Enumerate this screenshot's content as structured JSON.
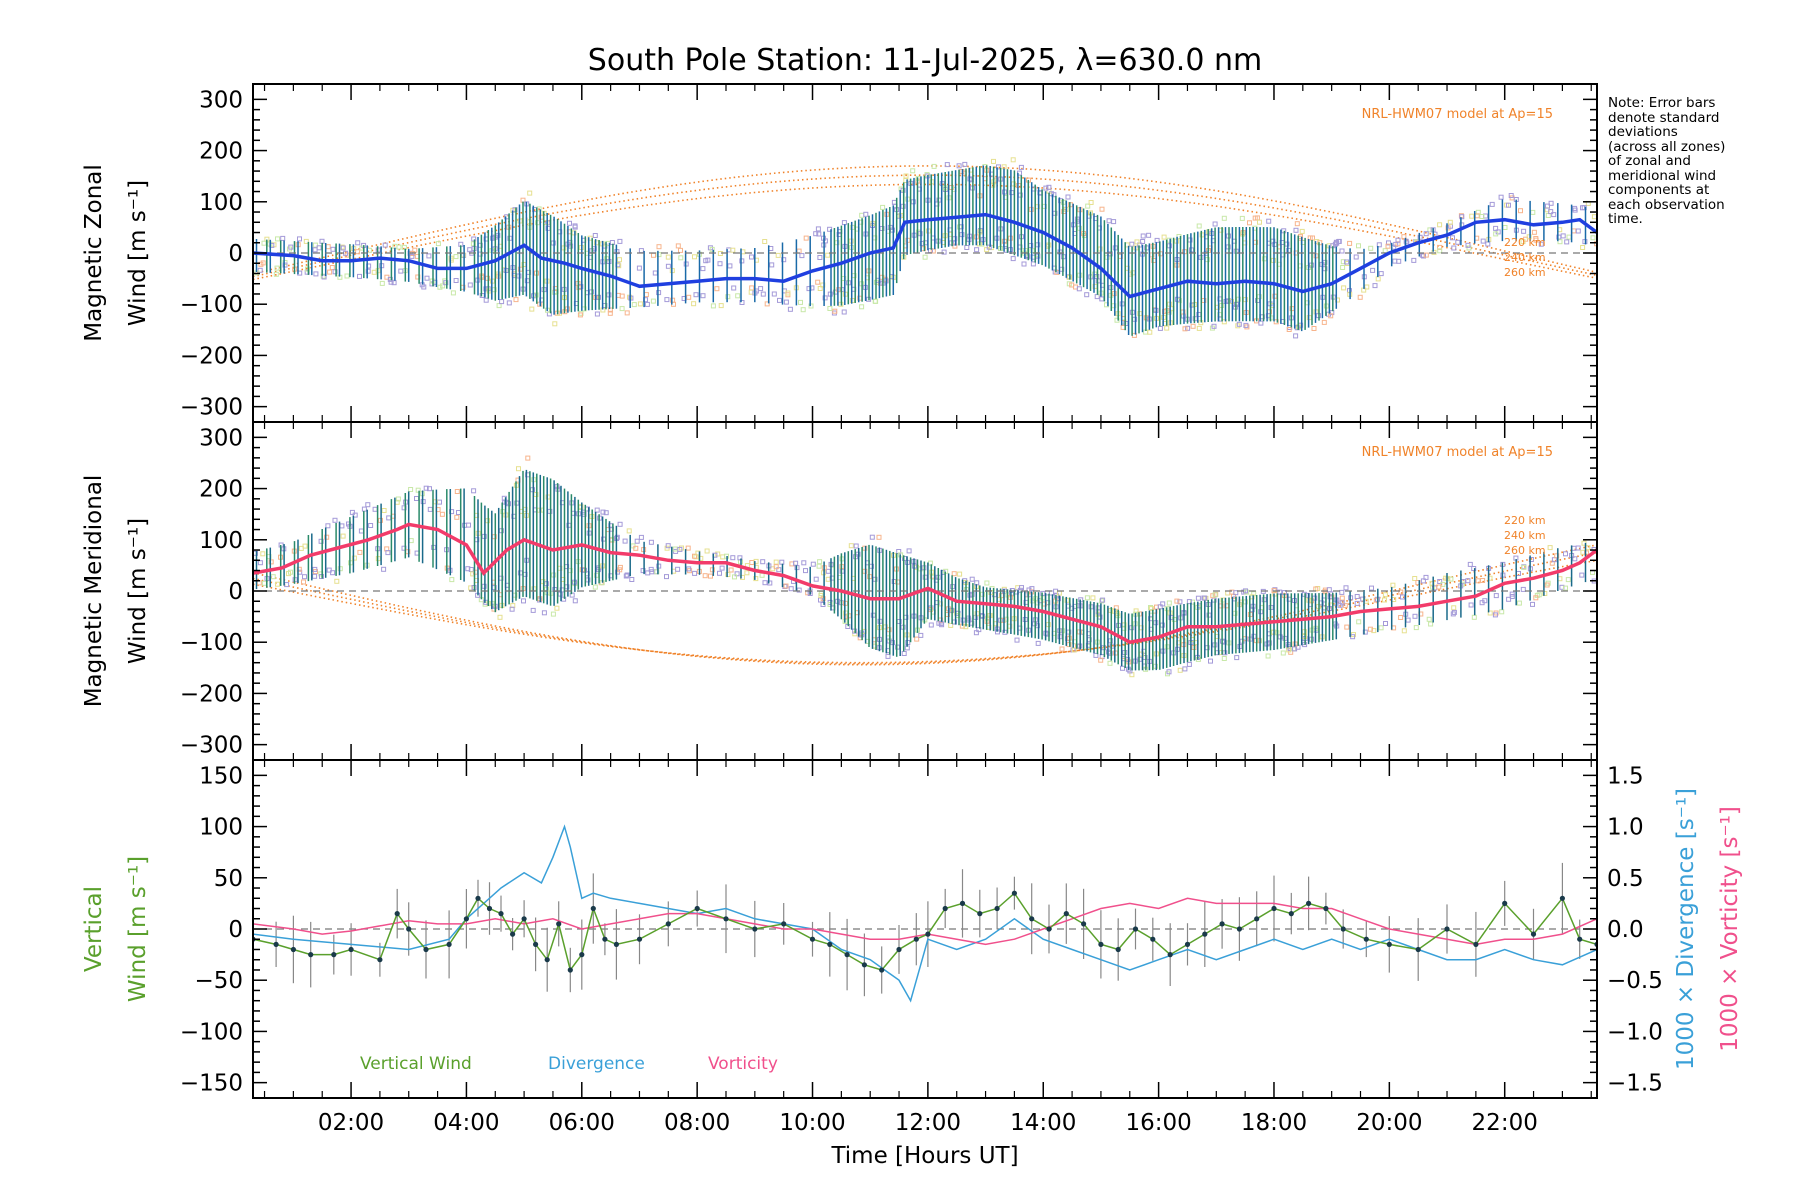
{
  "colors": {
    "zonal_mean": "#1f3fe0",
    "meridional_mean": "#f23b6a",
    "model": "#f0832a",
    "vertical": "#5aa02c",
    "divergence": "#3aa0d8",
    "vorticity": "#f0508c",
    "scatter": "#a49ad8",
    "errbar_zonal": "#1a6aa8",
    "errbar_merid": "#1a6a8a"
  },
  "note": {
    "lines": [
      "Note: Error bars",
      "denote standard",
      "deviations",
      "(across all zones)",
      "of zonal and",
      "meridional wind",
      "components at",
      "each observation",
      "time."
    ]
  },
  "chart_data": {
    "title": "South Pole Station: 11-Jul-2025, λ=630.0 nm",
    "xlabel": "Time [Hours UT]",
    "xlim": [
      0.3,
      23.6
    ],
    "xticks": [
      2,
      4,
      6,
      8,
      10,
      12,
      14,
      16,
      18,
      20,
      22
    ],
    "xtick_labels": [
      "02:00",
      "04:00",
      "06:00",
      "08:00",
      "10:00",
      "12:00",
      "14:00",
      "16:00",
      "18:00",
      "20:00",
      "22:00"
    ],
    "panels": [
      {
        "name": "zonal",
        "type": "line",
        "ylabel_line1": "Magnetic Zonal",
        "ylabel_line2": "Wind [m s⁻¹]",
        "ylim": [
          -330,
          330
        ],
        "yticks": [
          -300,
          -200,
          -100,
          0,
          100,
          200,
          300
        ],
        "model_label": "NRL-HWM07 model at Ap=15",
        "model_altitudes": [
          "220 km",
          "240 km",
          "260 km"
        ],
        "series_mean": {
          "name": "Magnetic Zonal Wind",
          "x": [
            0.3,
            1.0,
            1.5,
            2.0,
            2.5,
            3.0,
            3.5,
            4.0,
            4.5,
            5.0,
            5.3,
            5.7,
            6.0,
            6.5,
            7.0,
            7.5,
            8.0,
            8.5,
            9.0,
            9.5,
            10.0,
            10.5,
            11.0,
            11.4,
            11.6,
            12.0,
            12.5,
            13.0,
            13.5,
            14.0,
            14.5,
            15.0,
            15.5,
            16.0,
            16.5,
            17.0,
            17.5,
            18.0,
            18.5,
            19.0,
            19.5,
            20.0,
            20.5,
            21.0,
            21.5,
            22.0,
            22.5,
            23.0,
            23.3,
            23.6
          ],
          "y": [
            0,
            -5,
            -15,
            -15,
            -10,
            -15,
            -30,
            -30,
            -15,
            15,
            -10,
            -20,
            -30,
            -45,
            -65,
            -60,
            -55,
            -50,
            -50,
            -55,
            -35,
            -20,
            0,
            10,
            60,
            65,
            70,
            75,
            60,
            40,
            10,
            -30,
            -85,
            -70,
            -55,
            -60,
            -55,
            -60,
            -75,
            -60,
            -30,
            0,
            20,
            35,
            60,
            65,
            55,
            60,
            65,
            40
          ]
        },
        "envelope_upper": {
          "x": [
            0.3,
            2,
            3,
            4,
            4.5,
            5,
            5.5,
            6,
            7,
            8,
            9,
            10,
            10.5,
            11,
            11.4,
            11.6,
            12,
            12.5,
            13,
            13.5,
            14,
            15,
            15.5,
            16,
            17,
            18,
            18.5,
            19,
            19.5,
            20,
            21,
            22,
            23,
            23.6
          ],
          "y": [
            30,
            20,
            10,
            20,
            60,
            110,
            80,
            40,
            10,
            10,
            15,
            40,
            60,
            80,
            100,
            150,
            160,
            170,
            180,
            170,
            130,
            80,
            20,
            30,
            60,
            60,
            40,
            20,
            10,
            20,
            60,
            110,
            100,
            90
          ]
        },
        "envelope_lower": {
          "x": [
            0.3,
            2,
            3,
            4,
            4.5,
            5,
            5.5,
            6,
            7,
            8,
            9,
            10,
            10.5,
            11,
            11.4,
            11.6,
            12,
            12.5,
            13,
            13.5,
            14,
            15,
            15.5,
            16,
            17,
            18,
            18.5,
            19,
            19.5,
            20,
            21,
            22,
            23,
            23.6
          ],
          "y": [
            -40,
            -50,
            -60,
            -80,
            -100,
            -90,
            -130,
            -120,
            -110,
            -100,
            -100,
            -110,
            -110,
            -100,
            -90,
            -10,
            0,
            10,
            10,
            -10,
            -30,
            -90,
            -170,
            -150,
            -140,
            -140,
            -160,
            -120,
            -80,
            -30,
            10,
            20,
            20,
            10
          ]
        }
      },
      {
        "name": "meridional",
        "type": "line",
        "ylabel_line1": "Magnetic Meridional",
        "ylabel_line2": "Wind [m s⁻¹]",
        "ylim": [
          -330,
          330
        ],
        "yticks": [
          -300,
          -200,
          -100,
          0,
          100,
          200,
          300
        ],
        "model_label": "NRL-HWM07 model at Ap=15",
        "model_altitudes": [
          "220 km",
          "240 km",
          "260 km"
        ],
        "series_mean": {
          "name": "Magnetic Meridional Wind",
          "x": [
            0.3,
            0.8,
            1.3,
            1.8,
            2.3,
            2.8,
            3.0,
            3.5,
            4.0,
            4.3,
            4.7,
            5.0,
            5.5,
            6.0,
            6.5,
            7.0,
            7.5,
            8.0,
            8.5,
            9.0,
            9.5,
            10.0,
            10.5,
            11.0,
            11.5,
            12.0,
            12.5,
            13.0,
            13.5,
            14.0,
            14.5,
            15.0,
            15.5,
            16.0,
            16.5,
            17.0,
            17.5,
            18.0,
            18.5,
            19.0,
            19.5,
            20.0,
            20.5,
            21.0,
            21.5,
            22.0,
            22.5,
            23.0,
            23.3,
            23.6
          ],
          "y": [
            35,
            45,
            70,
            85,
            100,
            120,
            130,
            120,
            90,
            35,
            80,
            100,
            80,
            90,
            75,
            70,
            60,
            55,
            55,
            40,
            30,
            10,
            0,
            -15,
            -15,
            5,
            -20,
            -25,
            -30,
            -40,
            -55,
            -70,
            -100,
            -90,
            -70,
            -70,
            -65,
            -60,
            -55,
            -50,
            -40,
            -35,
            -30,
            -20,
            -10,
            15,
            25,
            40,
            55,
            80
          ]
        },
        "envelope_upper": {
          "x": [
            0.3,
            1,
            2,
            3,
            4,
            4.5,
            5,
            5.5,
            6,
            7,
            8,
            9,
            10,
            10.5,
            11,
            11.5,
            12,
            12.5,
            13,
            14,
            15,
            15.5,
            16,
            17,
            18,
            19,
            20,
            21,
            22,
            23,
            23.6
          ],
          "y": [
            80,
            100,
            150,
            200,
            210,
            160,
            250,
            230,
            180,
            100,
            80,
            60,
            50,
            80,
            100,
            80,
            60,
            30,
            10,
            0,
            -20,
            -40,
            -30,
            -10,
            0,
            0,
            10,
            40,
            60,
            90,
            100
          ]
        },
        "envelope_lower": {
          "x": [
            0.3,
            1,
            2,
            3,
            4,
            4.5,
            5,
            5.5,
            6,
            7,
            8,
            9,
            10,
            10.5,
            11,
            11.5,
            12,
            12.5,
            13,
            14,
            15,
            15.5,
            16,
            17,
            18,
            19,
            20,
            21,
            22,
            23,
            23.6
          ],
          "y": [
            0,
            10,
            30,
            60,
            10,
            -50,
            -20,
            -40,
            0,
            30,
            30,
            20,
            -10,
            -60,
            -120,
            -140,
            -60,
            -70,
            -80,
            -100,
            -130,
            -160,
            -160,
            -130,
            -120,
            -100,
            -80,
            -60,
            -40,
            0,
            20
          ]
        }
      },
      {
        "name": "vertical",
        "type": "line",
        "ylabel_line1": "Vertical",
        "ylabel_line2": "Wind [m s⁻¹]",
        "ylabel_right_div": "1000 × Divergence [s⁻¹]",
        "ylabel_right_vort": "1000 × Vorticity [s⁻¹]",
        "ylim": [
          -165,
          165
        ],
        "yticks": [
          -150,
          -100,
          -50,
          0,
          50,
          100,
          150
        ],
        "y2lim": [
          -1.65,
          1.65
        ],
        "y2ticks": [
          -1.5,
          -1.0,
          -0.5,
          0.0,
          0.5,
          1.0,
          1.5
        ],
        "y2tick_labels": [
          "−1.5",
          "−1.0",
          "−0.5",
          "0.0",
          "0.5",
          "1.0",
          "1.5"
        ],
        "legend": [
          "Vertical Wind",
          "Divergence",
          "Vorticity"
        ],
        "series": [
          {
            "name": "Vertical Wind",
            "x": [
              0.3,
              0.7,
              1.0,
              1.3,
              1.7,
              2.0,
              2.5,
              2.8,
              3.0,
              3.3,
              3.7,
              4.0,
              4.2,
              4.4,
              4.6,
              4.8,
              5.0,
              5.2,
              5.4,
              5.6,
              5.8,
              6.0,
              6.2,
              6.4,
              6.6,
              7.0,
              7.5,
              8.0,
              8.5,
              9.0,
              9.5,
              10.0,
              10.3,
              10.6,
              10.9,
              11.2,
              11.5,
              11.8,
              12.0,
              12.3,
              12.6,
              12.9,
              13.2,
              13.5,
              13.8,
              14.1,
              14.4,
              14.7,
              15.0,
              15.3,
              15.6,
              15.9,
              16.2,
              16.5,
              16.8,
              17.1,
              17.4,
              17.7,
              18.0,
              18.3,
              18.6,
              18.9,
              19.2,
              19.6,
              20.0,
              20.5,
              21.0,
              21.5,
              22.0,
              22.5,
              23.0,
              23.3,
              23.6
            ],
            "y": [
              -10,
              -15,
              -20,
              -25,
              -25,
              -20,
              -30,
              15,
              0,
              -20,
              -15,
              10,
              30,
              20,
              15,
              -5,
              10,
              -15,
              -30,
              5,
              -40,
              -25,
              20,
              -10,
              -15,
              -10,
              5,
              20,
              10,
              0,
              5,
              -10,
              -15,
              -25,
              -35,
              -40,
              -20,
              -10,
              -5,
              20,
              25,
              15,
              20,
              35,
              10,
              0,
              15,
              5,
              -15,
              -20,
              0,
              -10,
              -25,
              -15,
              -5,
              5,
              0,
              10,
              20,
              15,
              25,
              20,
              0,
              -10,
              -15,
              -20,
              0,
              -15,
              25,
              -5,
              30,
              -10,
              -15
            ]
          },
          {
            "name": "Divergence",
            "x": [
              0.3,
              1,
              2,
              3,
              3.7,
              4.0,
              4.3,
              4.6,
              5.0,
              5.3,
              5.5,
              5.7,
              5.8,
              6.0,
              6.2,
              6.5,
              7,
              7.5,
              8,
              8.5,
              9,
              9.5,
              10,
              10.5,
              11,
              11.5,
              11.7,
              12,
              12.5,
              13,
              13.5,
              14,
              14.5,
              15,
              15.5,
              16,
              16.5,
              17,
              17.5,
              18,
              18.5,
              19,
              19.5,
              20,
              20.5,
              21,
              21.5,
              22,
              22.5,
              23,
              23.6
            ],
            "y": [
              -0.05,
              -0.1,
              -0.15,
              -0.2,
              -0.1,
              0.1,
              0.25,
              0.4,
              0.55,
              0.45,
              0.7,
              1.0,
              0.8,
              0.3,
              0.35,
              0.3,
              0.25,
              0.2,
              0.15,
              0.2,
              0.1,
              0.05,
              0.0,
              -0.2,
              -0.3,
              -0.5,
              -0.7,
              -0.1,
              -0.2,
              -0.1,
              0.1,
              -0.1,
              -0.2,
              -0.3,
              -0.4,
              -0.3,
              -0.2,
              -0.3,
              -0.2,
              -0.1,
              -0.2,
              -0.1,
              -0.2,
              -0.1,
              -0.2,
              -0.3,
              -0.3,
              -0.2,
              -0.3,
              -0.35,
              -0.2
            ]
          },
          {
            "name": "Vorticity",
            "x": [
              0.3,
              1,
              1.5,
              2,
              2.5,
              3,
              3.5,
              4,
              4.5,
              5,
              5.5,
              6,
              6.5,
              7,
              7.5,
              8,
              8.5,
              9,
              9.5,
              10,
              10.5,
              11,
              11.5,
              12,
              12.5,
              13,
              13.5,
              14,
              14.5,
              15,
              15.5,
              16,
              16.5,
              17,
              17.5,
              18,
              18.5,
              19,
              19.5,
              20,
              20.5,
              21,
              21.5,
              22,
              22.5,
              23,
              23.6
            ],
            "y": [
              0.05,
              0.0,
              -0.05,
              -0.02,
              0.03,
              0.08,
              0.05,
              0.05,
              0.1,
              0.05,
              0.1,
              0.0,
              0.05,
              0.1,
              0.15,
              0.15,
              0.1,
              0.05,
              0.0,
              0.0,
              -0.05,
              -0.1,
              -0.1,
              -0.05,
              -0.1,
              -0.15,
              -0.1,
              0.0,
              0.1,
              0.2,
              0.25,
              0.2,
              0.3,
              0.25,
              0.25,
              0.25,
              0.2,
              0.2,
              0.1,
              0.0,
              -0.05,
              -0.1,
              -0.15,
              -0.1,
              -0.1,
              -0.05,
              0.1
            ]
          }
        ]
      }
    ]
  }
}
